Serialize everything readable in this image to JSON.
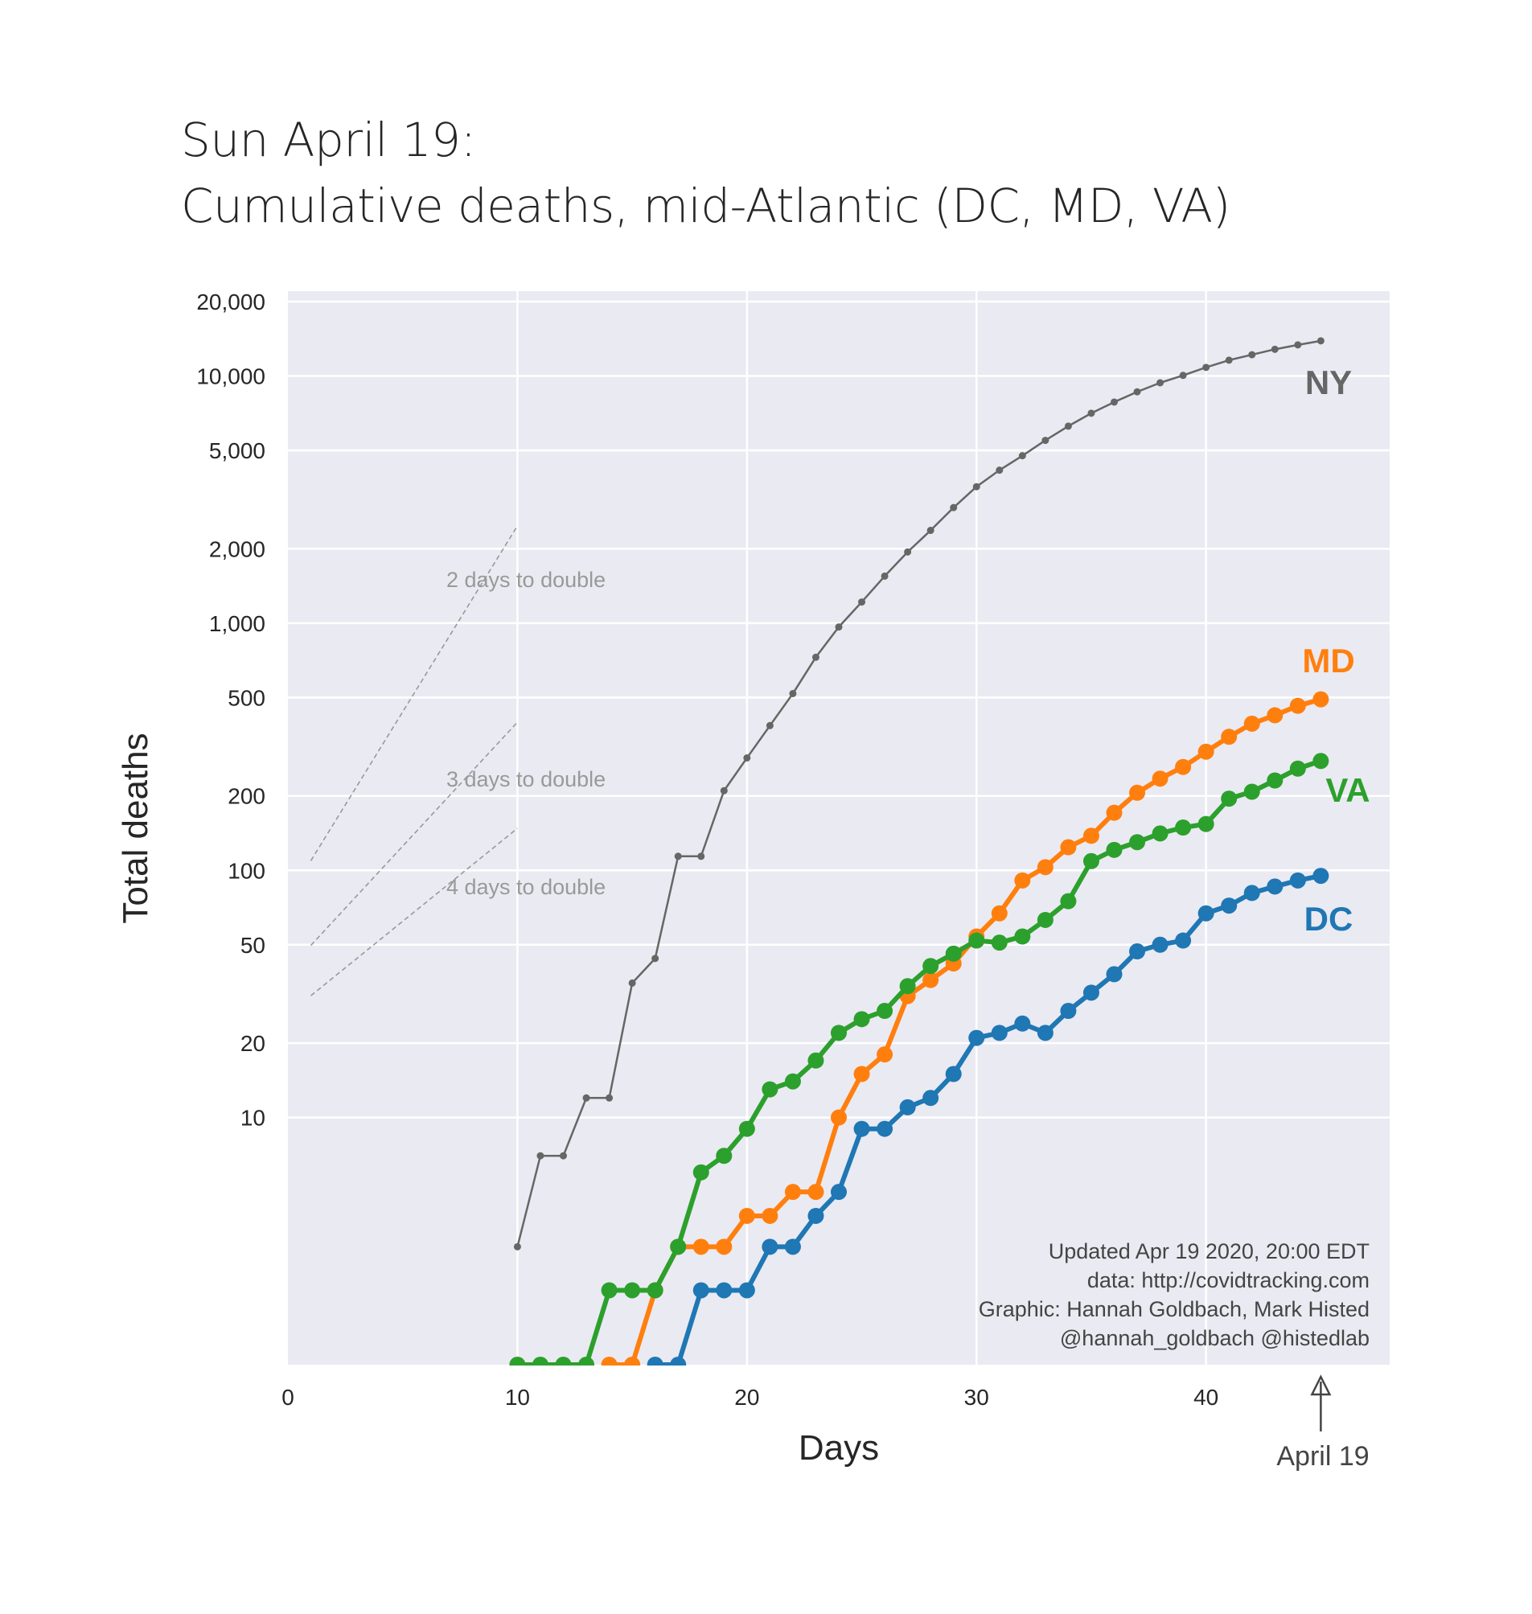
{
  "title_line1": "Sun April 19:",
  "title_line2": "Cumulative deaths, mid-Atlantic (DC, MD, VA)",
  "chart_data": {
    "type": "line",
    "xlabel": "Days",
    "ylabel": "Total deaths",
    "y_scale": "log",
    "xlim": [
      0,
      48
    ],
    "ylim": [
      1,
      20000
    ],
    "grid": true,
    "x_ticks": [
      0,
      10,
      20,
      30,
      40
    ],
    "x_tick_labels": [
      "0",
      "10",
      "20",
      "30",
      "40"
    ],
    "y_ticks": [
      10,
      20,
      50,
      100,
      200,
      500,
      1000,
      2000,
      5000,
      10000,
      20000
    ],
    "y_tick_labels": [
      "10",
      "20",
      "50",
      "100",
      "200",
      "500",
      "1,000",
      "2,000",
      "5,000",
      "10,000",
      "20,000"
    ],
    "series": [
      {
        "name": "NY",
        "color": "#666666",
        "x": [
          10,
          11,
          12,
          13,
          14,
          15,
          16,
          17,
          18,
          19,
          20,
          21,
          22,
          23,
          24,
          25,
          26,
          27,
          28,
          29,
          30,
          31,
          32,
          33,
          34,
          35,
          36,
          37,
          38,
          39,
          40,
          41,
          42,
          43,
          44,
          45
        ],
        "values": [
          3,
          7,
          7,
          12,
          12,
          35,
          44,
          114,
          114,
          210,
          285,
          385,
          519,
          728,
          965,
          1218,
          1550,
          1941,
          2373,
          2935,
          3565,
          4159,
          4758,
          5489,
          6268,
          7067,
          7844,
          8627,
          9385,
          10056,
          10834,
          11586,
          12192,
          12822,
          13362,
          13869
        ]
      },
      {
        "name": "MD",
        "color": "#ff7f0e",
        "x": [
          14,
          15,
          16,
          17,
          18,
          19,
          20,
          21,
          22,
          23,
          24,
          25,
          26,
          27,
          28,
          29,
          30,
          31,
          32,
          33,
          34,
          35,
          36,
          37,
          38,
          39,
          40,
          41,
          42,
          43,
          44,
          45
        ],
        "values": [
          1,
          1,
          2,
          3,
          3,
          3,
          4,
          4,
          5,
          5,
          10,
          15,
          18,
          31,
          36,
          42,
          54,
          67,
          91,
          103,
          124,
          138,
          171,
          206,
          235,
          262,
          302,
          347,
          392,
          424,
          463,
          492
        ]
      },
      {
        "name": "VA",
        "color": "#2ca02c",
        "x": [
          10,
          11,
          12,
          13,
          14,
          15,
          16,
          17,
          18,
          19,
          20,
          21,
          22,
          23,
          24,
          25,
          26,
          27,
          28,
          29,
          30,
          31,
          32,
          33,
          34,
          35,
          36,
          37,
          38,
          39,
          40,
          41,
          42,
          43,
          44,
          45
        ],
        "values": [
          1,
          1,
          1,
          1,
          2,
          2,
          2,
          3,
          6,
          7,
          9,
          13,
          14,
          17,
          22,
          25,
          27,
          34,
          41,
          46,
          52,
          51,
          54,
          63,
          75,
          109,
          121,
          130,
          141,
          149,
          154,
          195,
          208,
          231,
          258,
          277
        ]
      },
      {
        "name": "DC",
        "color": "#1f77b4",
        "x": [
          16,
          17,
          18,
          19,
          20,
          21,
          22,
          23,
          24,
          25,
          26,
          27,
          28,
          29,
          30,
          31,
          32,
          33,
          34,
          35,
          36,
          37,
          38,
          39,
          40,
          41,
          42,
          43,
          44,
          45
        ],
        "values": [
          1,
          1,
          2,
          2,
          2,
          3,
          3,
          4,
          5,
          9,
          9,
          11,
          12,
          15,
          21,
          22,
          24,
          22,
          27,
          32,
          38,
          47,
          50,
          52,
          67,
          72,
          81,
          86,
          91,
          95
        ]
      }
    ],
    "reference_lines": [
      {
        "label": "2 days to double",
        "x": [
          1,
          10
        ],
        "y": [
          109.4,
          2475.6
        ]
      },
      {
        "label": "3 days to double",
        "x": [
          1,
          10
        ],
        "y": [
          49.7,
          397.5
        ]
      },
      {
        "label": "4 days to double",
        "x": [
          1,
          10
        ],
        "y": [
          31.1,
          147.9
        ]
      }
    ],
    "annotations": {
      "credit_lines": [
        "Updated Apr 19 2020, 20:00 EDT",
        "data: http://covidtracking.com",
        "Graphic: Hannah Goldbach, Mark Histed",
        "@hannah_goldbach @histedlab"
      ],
      "arrow_label": "April 19",
      "arrow_x": 45
    }
  }
}
